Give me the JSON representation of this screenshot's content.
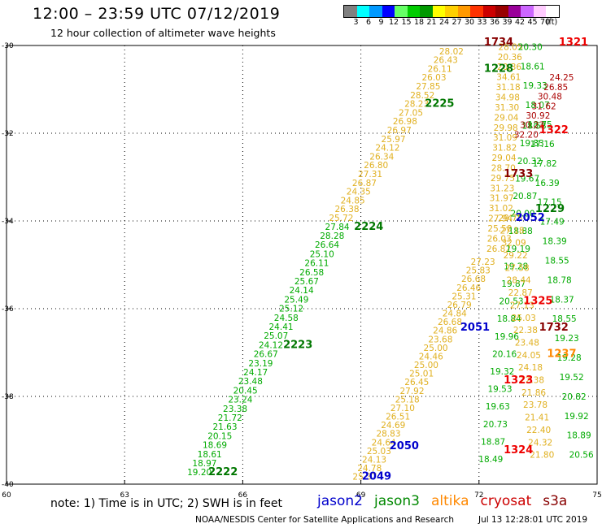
{
  "header": {
    "title": "12:00 – 23:59 UTC 07/12/2019",
    "subtitle": "12 hour collection of altimeter wave heights"
  },
  "color_scale": {
    "colors": [
      "#808080",
      "#00ffff",
      "#0099ff",
      "#0000ff",
      "#66ff66",
      "#00cc00",
      "#009900",
      "#ffff00",
      "#ffd000",
      "#ff9900",
      "#ff3300",
      "#cc0000",
      "#990000",
      "#990099",
      "#cc66ff",
      "#ffccff",
      "#ffffff"
    ],
    "labels": [
      "3",
      "6",
      "9",
      "12",
      "15",
      "18",
      "21",
      "24",
      "27",
      "30",
      "33",
      "36",
      "39",
      "42",
      "45",
      "70",
      "(ft)"
    ]
  },
  "map": {
    "lon_range": [
      60,
      75
    ],
    "lat_range": [
      -40,
      -30
    ],
    "lon_ticks": [
      "60",
      "63",
      "66",
      "69",
      "72",
      "75"
    ],
    "lat_ticks": [
      "-30",
      "-32",
      "-34",
      "-36",
      "-38",
      "-40"
    ],
    "grid_lons": [
      63,
      66,
      69,
      72
    ],
    "grid_lats": [
      -32,
      -34,
      -36,
      -38
    ]
  },
  "colors": {
    "jason2": "#0000cc",
    "jason3": "#008800",
    "altika": "#ff8800",
    "cryosat": "#cc0000",
    "s3a": "#880000",
    "yellow": "#e8e800",
    "gold": "#e0b020",
    "green": "#00aa00",
    "darkgreen": "#007700",
    "orange": "#ff8800",
    "red": "#ee0000",
    "darkred": "#aa0000"
  },
  "pass_labels": [
    {
      "text": "2222",
      "lon": 65.5,
      "lat": -39.8,
      "color": "darkgreen"
    },
    {
      "text": "2223",
      "lon": 67.4,
      "lat": -36.9,
      "color": "darkgreen"
    },
    {
      "text": "2224",
      "lon": 69.2,
      "lat": -34.2,
      "color": "darkgreen"
    },
    {
      "text": "2225",
      "lon": 71.0,
      "lat": -31.4,
      "color": "darkgreen"
    },
    {
      "text": "1228",
      "lon": 72.5,
      "lat": -30.6,
      "color": "darkgreen"
    },
    {
      "text": "1229",
      "lon": 73.8,
      "lat": -33.8,
      "color": "darkgreen"
    },
    {
      "text": "2049",
      "lon": 69.4,
      "lat": -39.9,
      "color": "jason2"
    },
    {
      "text": "2050",
      "lon": 70.1,
      "lat": -39.2,
      "color": "jason2"
    },
    {
      "text": "2051",
      "lon": 71.9,
      "lat": -36.5,
      "color": "jason2"
    },
    {
      "text": "2052",
      "lon": 73.3,
      "lat": -34.0,
      "color": "jason2"
    },
    {
      "text": "1237",
      "lon": 74.1,
      "lat": -37.1,
      "color": "orange"
    },
    {
      "text": "1321",
      "lon": 74.4,
      "lat": -30.0,
      "color": "red"
    },
    {
      "text": "1322",
      "lon": 73.9,
      "lat": -32.0,
      "color": "red"
    },
    {
      "text": "1323",
      "lon": 73.0,
      "lat": -37.7,
      "color": "red"
    },
    {
      "text": "1324",
      "lon": 73.0,
      "lat": -39.3,
      "color": "red"
    },
    {
      "text": "1325",
      "lon": 73.5,
      "lat": -35.9,
      "color": "red"
    },
    {
      "text": "1733",
      "lon": 73.0,
      "lat": -33.0,
      "color": "s3a"
    },
    {
      "text": "1732",
      "lon": 73.9,
      "lat": -36.5,
      "color": "s3a"
    },
    {
      "text": "1734",
      "lon": 72.5,
      "lat": -30.0,
      "color": "s3a"
    }
  ],
  "tracks": [
    {
      "name": "jason3-2222",
      "color": "green",
      "values": [
        "19.20",
        "18.97",
        "18.61",
        "18.69",
        "20.15",
        "21.63",
        "21.72",
        "23.38",
        "23.24",
        "20.45",
        "23.48",
        "24.17",
        "23.19",
        "26.67",
        "24.12",
        "25.07",
        "24.41",
        "24.58",
        "25.12",
        "25.49",
        "24.14",
        "25.67",
        "26.58",
        "26.11",
        "25.10",
        "26.64",
        "28.28",
        "27.84"
      ],
      "start": [
        64.9,
        -39.8
      ],
      "end": [
        68.4,
        -34.2
      ]
    },
    {
      "name": "jason3-2224",
      "color": "gold",
      "values": [
        "25.72",
        "26.38",
        "24.85",
        "24.35",
        "26.87",
        "27.31",
        "26.80",
        "26.34",
        "24.12",
        "25.97",
        "26.97",
        "26.98",
        "27.05",
        "28.23",
        "28.52",
        "27.85",
        "26.03",
        "26.11",
        "26.43",
        "28.02"
      ],
      "start": [
        68.5,
        -34.0
      ],
      "end": [
        71.3,
        -30.2
      ]
    },
    {
      "name": "altika-2049",
      "color": "gold",
      "values": [
        "25.37",
        "24.78",
        "24.13",
        "25.03",
        "24.64",
        "28.83",
        "24.69",
        "26.51",
        "27.10",
        "25.18",
        "27.92",
        "26.45",
        "25.01",
        "25.00",
        "24.46",
        "25.00",
        "23.68",
        "24.86",
        "26.68",
        "24.84",
        "26.79",
        "25.31",
        "26.46",
        "26.68",
        "25.83",
        "27.23"
      ],
      "start": [
        69.1,
        -39.9
      ],
      "end": [
        72.1,
        -35.0
      ]
    },
    {
      "name": "altika-2050",
      "color": "gold",
      "values": [
        "26.82",
        "26.03",
        "25.50",
        "27.94",
        "31.02",
        "31.97",
        "31.23",
        "29.75",
        "28.70",
        "29.04",
        "31.82",
        "31.09",
        "29.98",
        "29.04",
        "31.30",
        "34.98",
        "31.18",
        "34.61",
        "20.36",
        "20.36",
        "28.05"
      ],
      "start": [
        72.5,
        -34.7
      ],
      "end": [
        72.8,
        -30.1
      ]
    },
    {
      "name": "jason3-1228",
      "color": "green",
      "values": [
        "18.49",
        "18.87",
        "20.73",
        "19.63",
        "19.53",
        "19.32",
        "20.16",
        "19.96",
        "18.84",
        "20.53",
        "19.87",
        "19.28",
        "19.19",
        "18.88",
        "20.00",
        "20.87",
        "19.67",
        "20.32",
        "19.83",
        "18.58"
      ],
      "start": [
        72.3,
        -39.5
      ],
      "end": [
        73.4,
        -31.9
      ]
    },
    {
      "name": "altika-1237",
      "color": "gold",
      "values": [
        "21.80",
        "24.32",
        "22.40",
        "21.41",
        "23.78",
        "21.86",
        "22.38",
        "24.18",
        "24.05",
        "23.48",
        "22.38",
        "25.03",
        "27.13",
        "22.87",
        "28.44",
        "27.58",
        "29.22",
        "32.09",
        "27.18",
        "29.75"
      ],
      "start": [
        73.6,
        -39.4
      ],
      "end": [
        72.8,
        -34.0
      ]
    },
    {
      "name": "jason3-1229",
      "color": "green",
      "values": [
        "20.56",
        "18.89",
        "19.92",
        "20.82",
        "19.52",
        "19.28",
        "19.23",
        "18.55",
        "18.37",
        "18.78",
        "18.55",
        "18.39",
        "17.49",
        "17.15",
        "16.39",
        "17.82",
        "17.16",
        "18.75",
        "18.07",
        "19.33",
        "18.61",
        "20.30"
      ],
      "start": [
        74.6,
        -39.4
      ],
      "end": [
        73.3,
        -30.1
      ]
    },
    {
      "name": "cryosat-1321",
      "color": "darkred",
      "values": [
        "24.25",
        "26.85",
        "30.48",
        "31.62",
        "30.92",
        "30.23",
        "32.20"
      ],
      "start": [
        74.1,
        -30.8
      ],
      "end": [
        73.2,
        -32.1
      ]
    }
  ],
  "note": "note:  1) Time is in UTC;  2) SWH is in feet",
  "legend": [
    {
      "label": "jason2",
      "key": "jason2"
    },
    {
      "label": "jason3",
      "key": "jason3"
    },
    {
      "label": "altika",
      "key": "altika"
    },
    {
      "label": "cryosat",
      "key": "cryosat"
    },
    {
      "label": "s3a",
      "key": "s3a"
    }
  ],
  "footer": {
    "agency": "NOAA/NESDIS Center for Satellite Applications and Research",
    "timestamp": "Jul 13 12:28:01 UTC 2019"
  }
}
